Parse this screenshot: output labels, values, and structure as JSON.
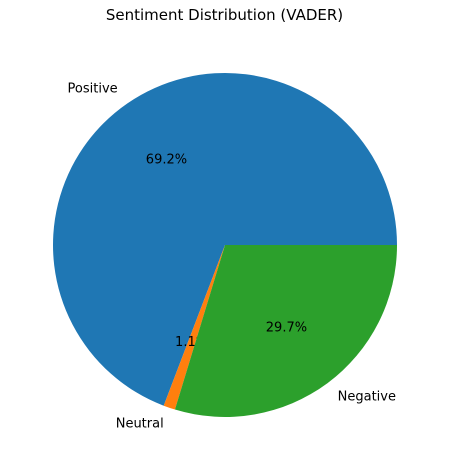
{
  "chart_data": {
    "type": "pie",
    "title": "Sentiment Distribution (VADER)",
    "categories": [
      "Positive",
      "Neutral",
      "Negative"
    ],
    "values": [
      69.2,
      1.1,
      29.7
    ],
    "value_labels": [
      "69.2%",
      "1.1%",
      "29.7%"
    ],
    "colors": [
      "#1f77b4",
      "#ff7f0e",
      "#2ca02c"
    ],
    "start_angle_deg": 0,
    "direction": "counterclockwise"
  }
}
